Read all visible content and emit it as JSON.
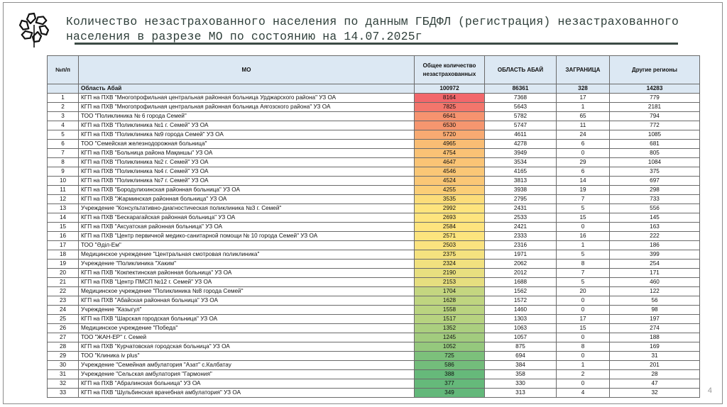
{
  "slide": {
    "title_line1": "Количество незастрахованного населения по данным ГБДФЛ (регистрация) незастрахованного",
    "title_line2": "населения в разрезе МО по состоянию на 14.07.2025г",
    "page_number": "4",
    "logo": "snowflake-hexagon-logo-icon"
  },
  "table": {
    "headers": [
      "№п/п",
      "МО",
      "Общее количество незастрахованных",
      "ОБЛАСТЬ АБАЙ",
      "ЗАГРАНИЦА",
      "Другие регионы"
    ],
    "summary": {
      "num": "",
      "name": "Область Абай",
      "total": "100972",
      "abai": "86361",
      "abroad": "328",
      "other": "14283"
    },
    "rows": [
      {
        "num": "1",
        "name": "КГП на ПХВ \"Многопрофильная центральная районная больница Урджарского района\" УЗ ОА",
        "total": "8164",
        "abai": "7368",
        "abroad": "17",
        "other": "779",
        "color": "#f2676b"
      },
      {
        "num": "2",
        "name": "КГП на ПХВ \"Многопрофильная центральная районная больница Аягозского района\" УЗ ОА",
        "total": "7825",
        "abai": "5643",
        "abroad": "1",
        "other": "2181",
        "color": "#f3766c"
      },
      {
        "num": "3",
        "name": "ТОО \"Поликлиника № 6 города Семей\"",
        "total": "6641",
        "abai": "5782",
        "abroad": "65",
        "other": "794",
        "color": "#f6936f"
      },
      {
        "num": "4",
        "name": "КГП на ПХВ \"Поликлиника №1 г. Семей\" УЗ ОА",
        "total": "6530",
        "abai": "5747",
        "abroad": "11",
        "other": "772",
        "color": "#f6966f"
      },
      {
        "num": "5",
        "name": "КГП на ПХВ \"Поликлиника №9 города Семей\" УЗ ОА",
        "total": "5720",
        "abai": "4611",
        "abroad": "24",
        "other": "1085",
        "color": "#f8aa72"
      },
      {
        "num": "6",
        "name": "ТОО \"Семейская железнодорожная больница\"",
        "total": "4965",
        "abai": "4278",
        "abroad": "6",
        "other": "681",
        "color": "#f9bd74"
      },
      {
        "num": "7",
        "name": "КГП на ПХВ \"Больница района Мақаншы\" УЗ ОА",
        "total": "4754",
        "abai": "3949",
        "abroad": "0",
        "other": "805",
        "color": "#fac275"
      },
      {
        "num": "8",
        "name": "КГП на ПХВ \"Поликлиника №2 г. Семей\" УЗ ОА",
        "total": "4647",
        "abai": "3534",
        "abroad": "29",
        "other": "1084",
        "color": "#fac475"
      },
      {
        "num": "9",
        "name": "КГП на ПХВ \"Поликлиника №4 г. Семей\" УЗ ОА",
        "total": "4546",
        "abai": "4165",
        "abroad": "6",
        "other": "375",
        "color": "#fac776"
      },
      {
        "num": "10",
        "name": "КГП на ПХВ \"Поликлиника №7 г. Семей\" УЗ ОА",
        "total": "4524",
        "abai": "3813",
        "abroad": "14",
        "other": "697",
        "color": "#fac776"
      },
      {
        "num": "11",
        "name": "КГП на ПХВ \"Бородулихинская районная больница\" УЗ ОА",
        "total": "4255",
        "abai": "3938",
        "abroad": "19",
        "other": "298",
        "color": "#fbce77"
      },
      {
        "num": "12",
        "name": "КГП на ПХВ \"Жарминская районная больница\" УЗ ОА",
        "total": "3535",
        "abai": "2795",
        "abroad": "7",
        "other": "733",
        "color": "#fcdd7a"
      },
      {
        "num": "13",
        "name": "Учреждение \"Консультативно-диагностическая поликлиника №3 г. Семей\"",
        "total": "2992",
        "abai": "2431",
        "abroad": "5",
        "other": "556",
        "color": "#fee47d"
      },
      {
        "num": "14",
        "name": "КГП на ПХВ \"Бескарагайская районная больница\" УЗ ОА",
        "total": "2693",
        "abai": "2533",
        "abroad": "15",
        "other": "145",
        "color": "#fee47e"
      },
      {
        "num": "15",
        "name": "КГП на ПХВ \"Аксуатская районная больница\" УЗ ОА",
        "total": "2584",
        "abai": "2421",
        "abroad": "0",
        "other": "163",
        "color": "#fee47e"
      },
      {
        "num": "16",
        "name": "КГП на ПХВ \"Центр первичной медико-санитарной помощи № 10 города Семей\" УЗ ОА",
        "total": "2571",
        "abai": "2333",
        "abroad": "16",
        "other": "222",
        "color": "#fde47e"
      },
      {
        "num": "17",
        "name": "ТОО \"Әділ-Ем\"",
        "total": "2503",
        "abai": "2316",
        "abroad": "1",
        "other": "186",
        "color": "#fbe37f"
      },
      {
        "num": "18",
        "name": "Медицинское учреждение \"Центральная смотровая поликлиника\"",
        "total": "2375",
        "abai": "1971",
        "abroad": "5",
        "other": "399",
        "color": "#f5e27f"
      },
      {
        "num": "19",
        "name": "Учреждение \"Поликлиника \"Хаким\"",
        "total": "2324",
        "abai": "2062",
        "abroad": "8",
        "other": "254",
        "color": "#f1e17f"
      },
      {
        "num": "20",
        "name": "КГП на ПХВ \"Кокпектинская районная больница\" УЗ ОА",
        "total": "2190",
        "abai": "2012",
        "abroad": "7",
        "other": "171",
        "color": "#e8df7f"
      },
      {
        "num": "21",
        "name": "КГП на ПХВ  \"Центр ПМСП №12 г. Семей\" УЗ ОА",
        "total": "2153",
        "abai": "1688",
        "abroad": "5",
        "other": "460",
        "color": "#e6de7f"
      },
      {
        "num": "22",
        "name": "Медицинское учреждение \"Поликлиника №8 города Семей\"",
        "total": "1704",
        "abai": "1562",
        "abroad": "20",
        "other": "122",
        "color": "#c4d680"
      },
      {
        "num": "23",
        "name": "КГП на ПХВ \"Абайская районная больница\" УЗ ОА",
        "total": "1628",
        "abai": "1572",
        "abroad": "0",
        "other": "56",
        "color": "#bfd580"
      },
      {
        "num": "24",
        "name": "Учреждение \"Казыгул\"",
        "total": "1558",
        "abai": "1460",
        "abroad": "0",
        "other": "98",
        "color": "#bad480"
      },
      {
        "num": "25",
        "name": "КГП на ПХВ \"Шарская городская больница\" УЗ ОА",
        "total": "1517",
        "abai": "1303",
        "abroad": "17",
        "other": "197",
        "color": "#b7d380"
      },
      {
        "num": "26",
        "name": "Медицинское учреждение \"Победа\"",
        "total": "1352",
        "abai": "1063",
        "abroad": "15",
        "other": "274",
        "color": "#abcf7f"
      },
      {
        "num": "27",
        "name": "ТОО \"ЖАН-ЕР\" г. Семей",
        "total": "1245",
        "abai": "1057",
        "abroad": "0",
        "other": "188",
        "color": "#a2cc7e"
      },
      {
        "num": "28",
        "name": "КГП на ПХВ \"Курчатовская городская больница\" УЗ ОА",
        "total": "1052",
        "abai": "875",
        "abroad": "8",
        "other": "169",
        "color": "#95c87d"
      },
      {
        "num": "29",
        "name": "ТОО \"Клиника iv plus\"",
        "total": "725",
        "abai": "694",
        "abroad": "0",
        "other": "31",
        "color": "#7cc07b"
      },
      {
        "num": "30",
        "name": "Учреждение \"Семейная амбулатория \"Азат\" с.Калбатау",
        "total": "586",
        "abai": "384",
        "abroad": "1",
        "other": "201",
        "color": "#73bd7b"
      },
      {
        "num": "31",
        "name": "Учреждение \"Сельская амбулатория \"Гармония\"",
        "total": "388",
        "abai": "358",
        "abroad": "2",
        "other": "28",
        "color": "#66b97a"
      },
      {
        "num": "32",
        "name": "КГП на ПХВ \"Абралинская больница\" УЗ ОА",
        "total": "377",
        "abai": "330",
        "abroad": "0",
        "other": "47",
        "color": "#65b97a"
      },
      {
        "num": "33",
        "name": "КГП на ПХВ \"Шульбинская врачебная амбулатория\" УЗ ОА",
        "total": "349",
        "abai": "313",
        "abroad": "4",
        "other": "32",
        "color": "#63b87a"
      }
    ]
  },
  "colors": {
    "header_bg": "#dce8f3",
    "title_text": "#2f3f3a",
    "scale_high": "#f2676b",
    "scale_mid": "#fee47e",
    "scale_low": "#63b87a"
  }
}
